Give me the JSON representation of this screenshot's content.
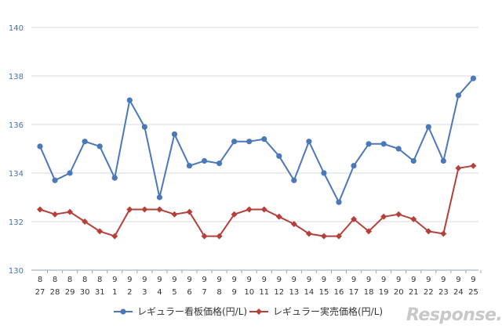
{
  "chart_data": {
    "type": "line",
    "categories": [
      [
        "8",
        "27"
      ],
      [
        "8",
        "28"
      ],
      [
        "8",
        "29"
      ],
      [
        "8",
        "30"
      ],
      [
        "8",
        "31"
      ],
      [
        "9",
        "1"
      ],
      [
        "9",
        "2"
      ],
      [
        "9",
        "3"
      ],
      [
        "9",
        "4"
      ],
      [
        "9",
        "5"
      ],
      [
        "9",
        "6"
      ],
      [
        "9",
        "7"
      ],
      [
        "9",
        "8"
      ],
      [
        "9",
        "9"
      ],
      [
        "9",
        "10"
      ],
      [
        "9",
        "11"
      ],
      [
        "9",
        "12"
      ],
      [
        "9",
        "13"
      ],
      [
        "9",
        "14"
      ],
      [
        "9",
        "15"
      ],
      [
        "9",
        "16"
      ],
      [
        "9",
        "17"
      ],
      [
        "9",
        "18"
      ],
      [
        "9",
        "19"
      ],
      [
        "9",
        "20"
      ],
      [
        "9",
        "21"
      ],
      [
        "9",
        "22"
      ],
      [
        "9",
        "23"
      ],
      [
        "9",
        "24"
      ],
      [
        "9",
        "25"
      ]
    ],
    "ylim": [
      130,
      140
    ],
    "yticks": [
      "130",
      "132",
      "134",
      "136",
      "138",
      "140"
    ],
    "grid": true,
    "legend_position": "bottom",
    "series": [
      {
        "name": "レギュラー看板価格(円/L)",
        "color": "#4a78b8",
        "marker": "circle",
        "values": [
          135.1,
          133.7,
          134.0,
          135.3,
          135.1,
          133.8,
          137.0,
          135.9,
          133.0,
          135.6,
          134.3,
          134.5,
          134.4,
          135.3,
          135.3,
          135.4,
          134.7,
          133.7,
          135.3,
          134.0,
          132.8,
          134.3,
          135.2,
          135.2,
          135.0,
          134.5,
          135.9,
          134.5,
          137.2,
          137.9
        ]
      },
      {
        "name": "レギュラー実売価格(円/L)",
        "color": "#b5403a",
        "marker": "diamond",
        "values": [
          132.5,
          132.3,
          132.4,
          132.0,
          131.6,
          131.4,
          132.5,
          132.5,
          132.5,
          132.3,
          132.4,
          131.4,
          131.4,
          132.3,
          132.5,
          132.5,
          132.2,
          131.9,
          131.5,
          131.4,
          131.4,
          132.1,
          131.6,
          132.2,
          132.3,
          132.1,
          131.6,
          131.5,
          134.2,
          134.3
        ]
      }
    ]
  },
  "watermark": "Response."
}
